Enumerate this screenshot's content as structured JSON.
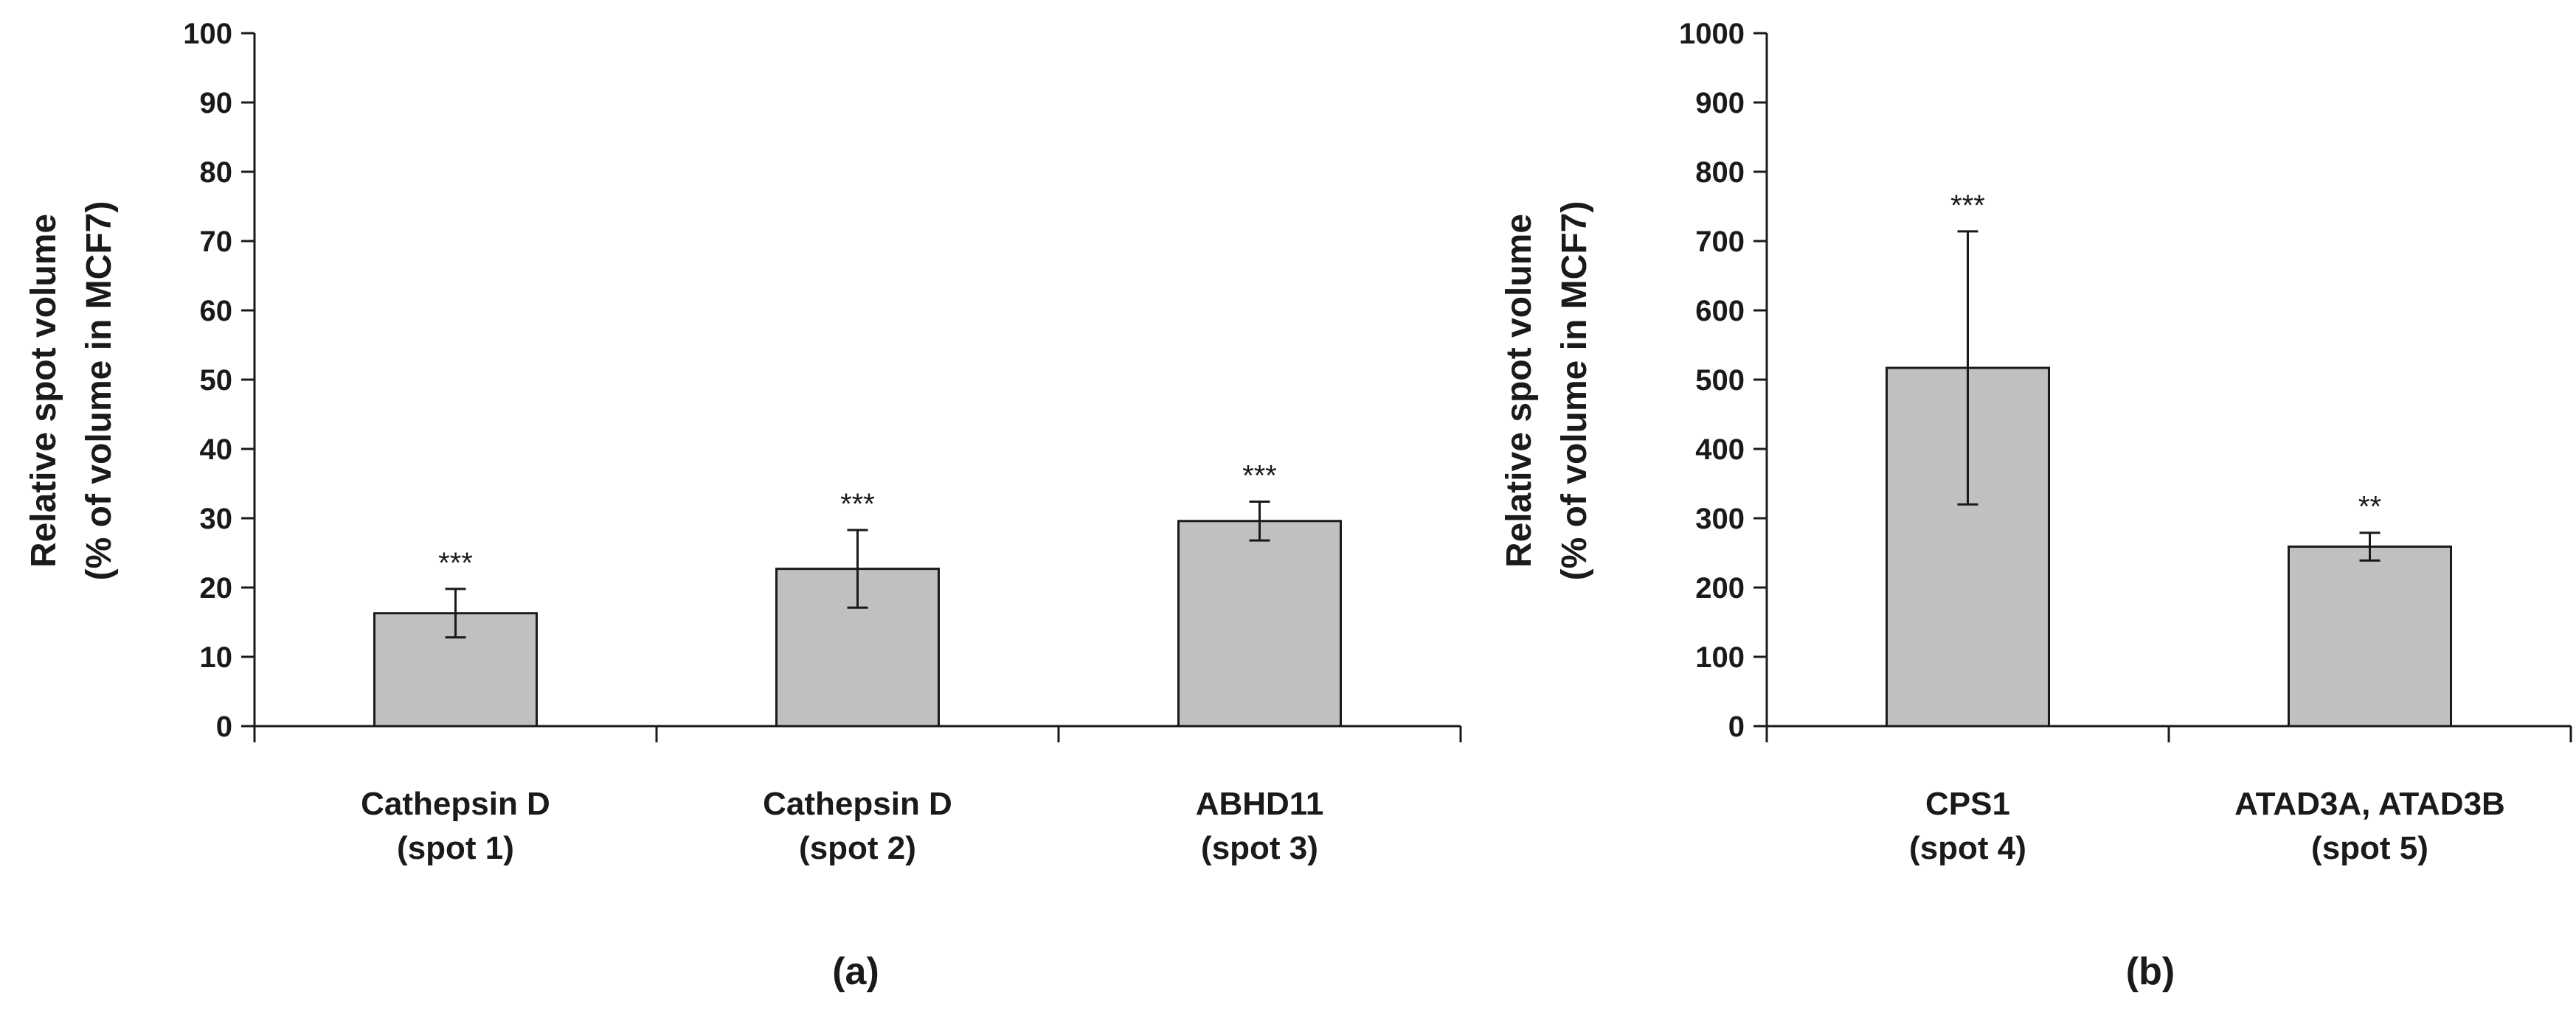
{
  "chart_data": [
    {
      "type": "bar",
      "panel_label": "(a)",
      "ylabel_lines": [
        "Relative spot volume",
        "(% of volume in MCF7)"
      ],
      "ylim": [
        0,
        100
      ],
      "yticks": [
        0,
        10,
        20,
        30,
        40,
        50,
        60,
        70,
        80,
        90,
        100
      ],
      "categories": [
        [
          "Cathepsin D",
          "(spot 1)"
        ],
        [
          "Cathepsin D",
          "(spot 2)"
        ],
        [
          "ABHD11",
          "(spot 3)"
        ]
      ],
      "values": [
        16.3,
        22.7,
        29.6
      ],
      "errors": [
        3.5,
        5.6,
        2.8
      ],
      "significance": [
        "***",
        "***",
        "***"
      ],
      "bar_color": "#c0c0c0"
    },
    {
      "type": "bar",
      "panel_label": "(b)",
      "ylabel_lines": [
        "Relative spot volume",
        "(% of volume in MCF7)"
      ],
      "ylim": [
        0,
        1000
      ],
      "yticks": [
        0,
        100,
        200,
        300,
        400,
        500,
        600,
        700,
        800,
        900,
        1000
      ],
      "categories": [
        [
          "CPS1",
          "(spot 4)"
        ],
        [
          "ATAD3A, ATAD3B",
          "(spot 5)"
        ]
      ],
      "values": [
        517,
        259
      ],
      "errors": [
        197,
        20
      ],
      "significance": [
        "***",
        "**"
      ],
      "bar_color": "#c0c0c0"
    }
  ]
}
